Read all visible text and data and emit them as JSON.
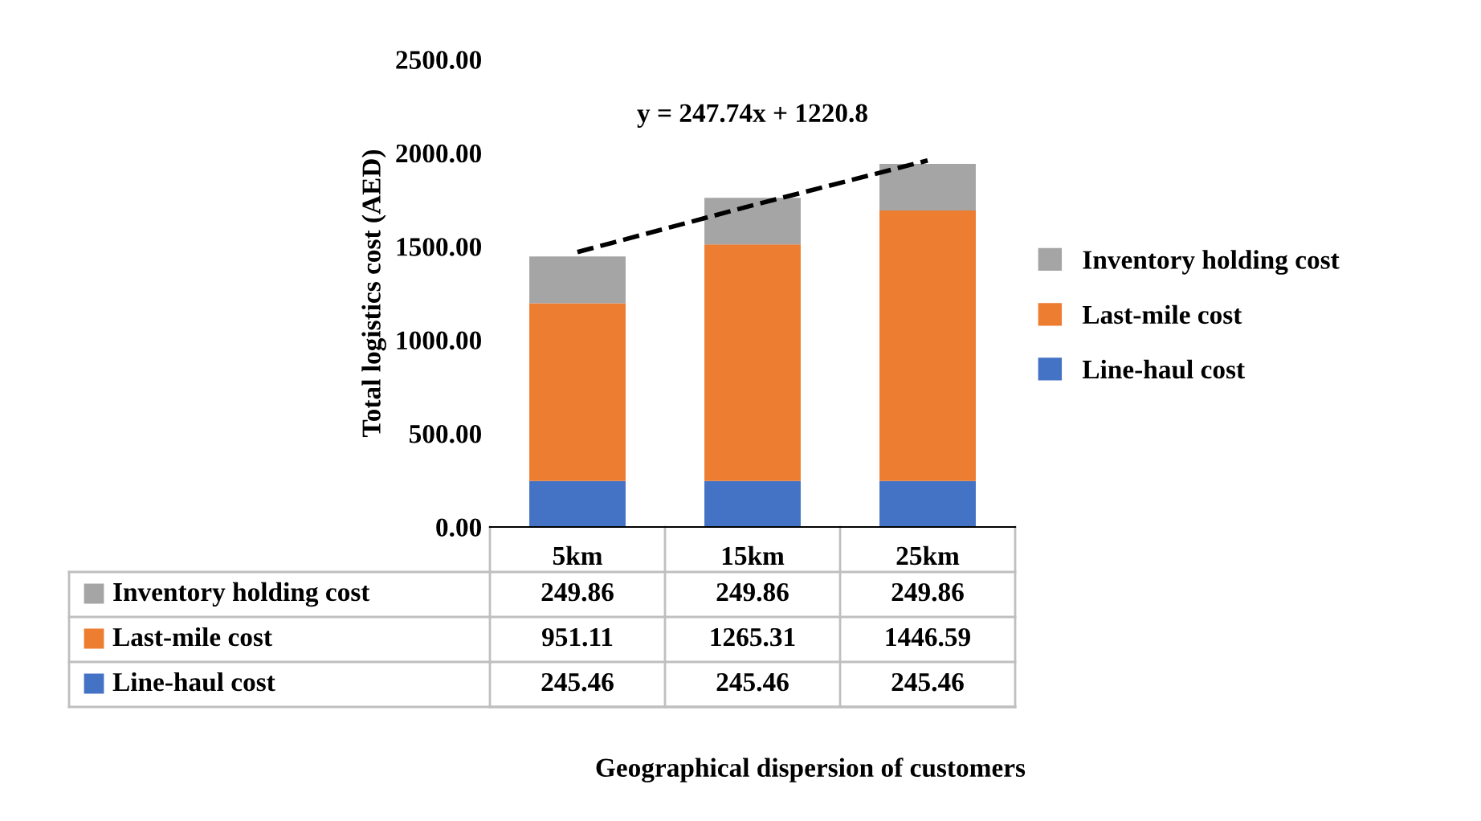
{
  "chart_data": {
    "type": "bar",
    "stacked": true,
    "categories": [
      "5km",
      "15km",
      "25km"
    ],
    "series": [
      {
        "name": "Line-haul cost",
        "color": "#4472c4",
        "values": [
          245.46,
          245.46,
          245.46
        ],
        "value_labels": [
          "245.46",
          "245.46",
          "245.46"
        ]
      },
      {
        "name": "Last-mile cost",
        "color": "#ed7d31",
        "values": [
          951.11,
          1265.31,
          1446.59
        ],
        "value_labels": [
          "951.11",
          "1265.31",
          "1446.59"
        ]
      },
      {
        "name": "Inventory holding cost",
        "color": "#a5a5a5",
        "values": [
          249.86,
          249.86,
          249.86
        ],
        "value_labels": [
          "249.86",
          "249.86",
          "249.86"
        ]
      },
      {
        "type": "line",
        "color": "#000000",
        "line_style": "dashed",
        "values": [
          1470,
          1720,
          1960
        ]
      }
    ],
    "ylim": [
      0,
      2500
    ],
    "yticks": [
      {
        "value": 0,
        "label": "0.00"
      },
      {
        "value": 500,
        "label": "500.00"
      },
      {
        "value": 1000,
        "label": "1000.00"
      },
      {
        "value": 1500,
        "label": "1500.00"
      },
      {
        "value": 2000,
        "label": "2000.00"
      },
      {
        "value": 2500,
        "label": "2500.00"
      }
    ],
    "ylabel": "Total logistics cost (AED)",
    "annotations": [
      "y = 247.74x + 1220.8",
      "Geographical dispersion of customers"
    ],
    "legend": "right",
    "grid": false
  }
}
